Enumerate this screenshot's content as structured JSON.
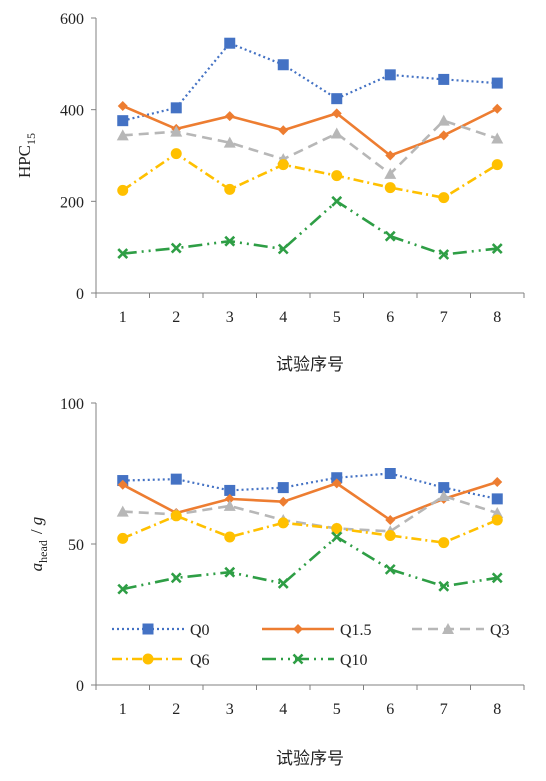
{
  "chart_data": [
    {
      "type": "line",
      "categories": [
        "1",
        "2",
        "3",
        "4",
        "5",
        "6",
        "7",
        "8"
      ],
      "ylabel_main": "HPC",
      "ylabel_sub": "15",
      "xlabel": "试验序号",
      "ylim": [
        0,
        600
      ],
      "yticks": [
        "0",
        "200",
        "400",
        "600"
      ],
      "grid": false,
      "series": [
        {
          "name": "Q0",
          "color": "#4472c4",
          "marker": "square",
          "dash": "2,3",
          "values": [
            376,
            404,
            545,
            498,
            424,
            476,
            466,
            458
          ]
        },
        {
          "name": "Q1.5",
          "color": "#ed7d31",
          "marker": "diamond",
          "dash": "",
          "values": [
            408,
            358,
            386,
            355,
            392,
            300,
            344,
            402
          ]
        },
        {
          "name": "Q3",
          "color": "#b7b7b7",
          "marker": "triangle",
          "dash": "10,6",
          "values": [
            344,
            352,
            328,
            292,
            348,
            260,
            376,
            337
          ]
        },
        {
          "name": "Q6",
          "color": "#ffc000",
          "marker": "circle",
          "dash": "10,4,2,4",
          "values": [
            224,
            304,
            226,
            280,
            256,
            230,
            208,
            280
          ]
        },
        {
          "name": "Q10",
          "color": "#2e9e45",
          "marker": "x",
          "dash": "14,5,2,5,2,5",
          "values": [
            86,
            98,
            113,
            96,
            200,
            124,
            84,
            97
          ]
        }
      ]
    },
    {
      "type": "line",
      "categories": [
        "1",
        "2",
        "3",
        "4",
        "5",
        "6",
        "7",
        "8"
      ],
      "ylabel_main": "a",
      "ylabel_sub": "head",
      "ylabel_tail": "/ g",
      "xlabel": "试验序号",
      "ylim": [
        0,
        100
      ],
      "yticks": [
        "0",
        "50",
        "100"
      ],
      "grid": false,
      "legend": {
        "placement": "inside-lower",
        "columns": 3
      },
      "series": [
        {
          "name": "Q0",
          "color": "#4472c4",
          "marker": "square",
          "dash": "2,3",
          "values": [
            72.5,
            73,
            69,
            70,
            73.5,
            75,
            70,
            66
          ]
        },
        {
          "name": "Q1.5",
          "color": "#ed7d31",
          "marker": "diamond",
          "dash": "",
          "values": [
            71,
            61,
            66,
            65,
            71.5,
            58.5,
            66,
            72
          ]
        },
        {
          "name": "Q3",
          "color": "#b7b7b7",
          "marker": "triangle",
          "dash": "10,6",
          "values": [
            61.5,
            60.5,
            63.5,
            58.5,
            55.5,
            54.5,
            67,
            61
          ]
        },
        {
          "name": "Q6",
          "color": "#ffc000",
          "marker": "circle",
          "dash": "10,4,2,4",
          "values": [
            52,
            60,
            52.5,
            57.5,
            55.5,
            53,
            50.5,
            58.5
          ]
        },
        {
          "name": "Q10",
          "color": "#2e9e45",
          "marker": "x",
          "dash": "14,5,2,5,2,5",
          "values": [
            34,
            38,
            40,
            36,
            52.5,
            41,
            35,
            38
          ]
        }
      ]
    }
  ]
}
